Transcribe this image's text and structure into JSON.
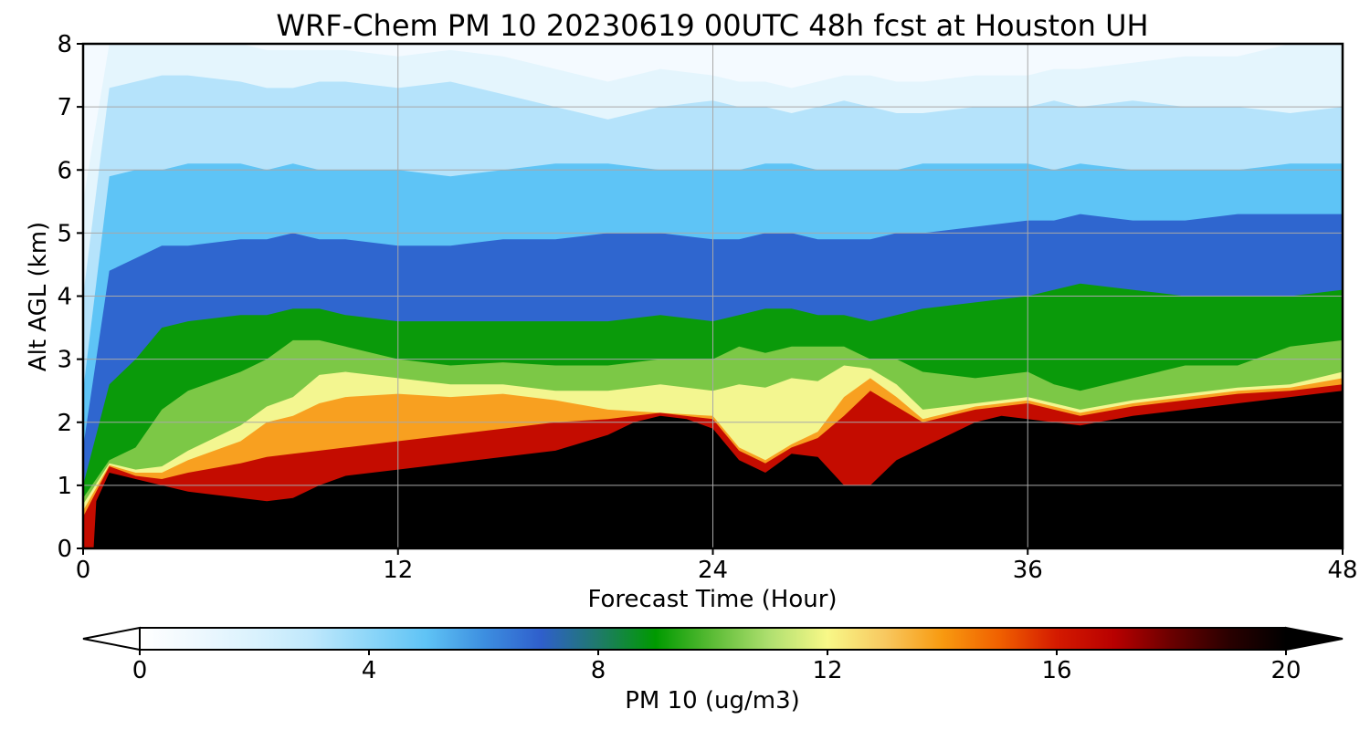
{
  "chart_data": {
    "type": "heatmap",
    "title": "WRF-Chem PM 10  20230619 00UTC 48h fcst at Houston UH",
    "xlabel": "Forecast Time (Hour)",
    "ylabel": "Alt AGL (km)",
    "xlim": [
      0,
      48
    ],
    "ylim": [
      0,
      8
    ],
    "xticks": [
      "0",
      "12",
      "24",
      "36",
      "48"
    ],
    "yticks": [
      "0",
      "1",
      "2",
      "3",
      "4",
      "5",
      "6",
      "7",
      "8"
    ],
    "grid": true,
    "masked_color": "#000000",
    "colorbar": {
      "label": "PM 10  (ug/m3)",
      "range": [
        0,
        20
      ],
      "ticks": [
        "0",
        "4",
        "8",
        "12",
        "16",
        "20"
      ],
      "extend": "both",
      "colors": [
        "#ffffff",
        "#eef8fe",
        "#daf2fd",
        "#bfe8fc",
        "#8dd6f8",
        "#5fc3f5",
        "#3d8fe0",
        "#2f5fcc",
        "#1f7a6a",
        "#009a00",
        "#5cbc36",
        "#b0e070",
        "#f8f888",
        "#f8c860",
        "#f89a10",
        "#f06000",
        "#d41a00",
        "#b80000",
        "#6a0000",
        "#2a0000",
        "#000000"
      ]
    },
    "terrain_top_km": {
      "x": [
        0,
        0.2,
        0.4,
        0.5,
        1,
        2,
        3,
        4,
        5,
        6,
        7,
        8,
        9,
        10,
        12,
        14,
        16,
        18,
        20,
        21,
        22,
        23,
        24,
        25,
        25.5,
        26,
        27,
        28,
        29,
        30,
        31,
        32,
        33,
        34,
        35,
        36,
        37,
        38,
        40,
        42,
        44,
        45,
        46,
        47,
        48
      ],
      "y": [
        0,
        0.0,
        0.0,
        0.75,
        1.2,
        1.1,
        1.0,
        0.9,
        0.85,
        0.8,
        0.75,
        0.8,
        1.0,
        1.15,
        1.25,
        1.35,
        1.45,
        1.55,
        1.8,
        2.0,
        2.1,
        2.05,
        1.9,
        1.4,
        1.3,
        1.2,
        1.5,
        1.45,
        1.0,
        1.0,
        1.4,
        1.6,
        1.8,
        2.0,
        2.1,
        2.05,
        2.0,
        1.95,
        2.1,
        2.2,
        2.3,
        2.35,
        2.4,
        2.45,
        2.5
      ]
    },
    "profile_layers_km": {
      "x": [
        0,
        1,
        2,
        3,
        4,
        6,
        7,
        8,
        9,
        10,
        12,
        14,
        16,
        18,
        20,
        22,
        24,
        25,
        26,
        27,
        28,
        29,
        30,
        31,
        32,
        34,
        36,
        37,
        38,
        40,
        42,
        44,
        46,
        48
      ],
      "red_top": [
        0.5,
        1.3,
        1.15,
        1.1,
        1.2,
        1.35,
        1.45,
        1.5,
        1.55,
        1.6,
        1.7,
        1.8,
        1.9,
        2.0,
        2.05,
        2.15,
        2.05,
        1.55,
        1.35,
        1.6,
        1.75,
        2.1,
        2.5,
        2.25,
        2.0,
        2.2,
        2.3,
        2.2,
        2.1,
        2.25,
        2.35,
        2.45,
        2.5,
        2.6
      ],
      "orange_top": [
        0.6,
        1.32,
        1.2,
        1.2,
        1.4,
        1.7,
        2.0,
        2.1,
        2.3,
        2.4,
        2.45,
        2.4,
        2.45,
        2.35,
        2.2,
        2.15,
        2.1,
        1.6,
        1.4,
        1.65,
        1.85,
        2.4,
        2.7,
        2.4,
        2.05,
        2.25,
        2.35,
        2.25,
        2.15,
        2.3,
        2.4,
        2.5,
        2.55,
        2.7
      ],
      "yellow_top": [
        0.7,
        1.35,
        1.25,
        1.3,
        1.55,
        1.95,
        2.25,
        2.4,
        2.75,
        2.8,
        2.7,
        2.6,
        2.6,
        2.5,
        2.5,
        2.6,
        2.5,
        2.6,
        2.55,
        2.7,
        2.65,
        2.9,
        2.85,
        2.6,
        2.2,
        2.3,
        2.4,
        2.3,
        2.2,
        2.35,
        2.45,
        2.55,
        2.6,
        2.8
      ],
      "lightgreen_top": [
        0.8,
        1.4,
        1.6,
        2.2,
        2.5,
        2.8,
        3.0,
        3.3,
        3.3,
        3.2,
        3.0,
        2.9,
        2.95,
        2.9,
        2.9,
        3.0,
        3.0,
        3.2,
        3.1,
        3.2,
        3.2,
        3.2,
        3.0,
        3.0,
        2.8,
        2.7,
        2.8,
        2.6,
        2.5,
        2.7,
        2.9,
        2.9,
        3.2,
        3.3
      ],
      "green_top": [
        1.0,
        2.6,
        3.0,
        3.5,
        3.6,
        3.7,
        3.7,
        3.8,
        3.8,
        3.7,
        3.6,
        3.6,
        3.6,
        3.6,
        3.6,
        3.7,
        3.6,
        3.7,
        3.8,
        3.8,
        3.7,
        3.7,
        3.6,
        3.7,
        3.8,
        3.9,
        4.0,
        4.1,
        4.2,
        4.1,
        4.0,
        4.0,
        4.0,
        4.1
      ],
      "darkblue_top": [
        1.6,
        4.4,
        4.6,
        4.8,
        4.8,
        4.9,
        4.9,
        5.0,
        4.9,
        4.9,
        4.8,
        4.8,
        4.9,
        4.9,
        5.0,
        5.0,
        4.9,
        4.9,
        5.0,
        5.0,
        4.9,
        4.9,
        4.9,
        5.0,
        5.0,
        5.1,
        5.2,
        5.2,
        5.3,
        5.2,
        5.2,
        5.3,
        5.3,
        5.3
      ],
      "skyblue_top": [
        2.5,
        5.9,
        6.0,
        6.0,
        6.1,
        6.1,
        6.0,
        6.1,
        6.0,
        6.0,
        6.0,
        5.9,
        6.0,
        6.1,
        6.1,
        6.0,
        6.0,
        6.0,
        6.1,
        6.1,
        6.0,
        6.0,
        6.0,
        6.0,
        6.1,
        6.1,
        6.1,
        6.0,
        6.1,
        6.0,
        6.0,
        6.0,
        6.1,
        6.1
      ],
      "lightblue_top": [
        4.0,
        7.3,
        7.4,
        7.5,
        7.5,
        7.4,
        7.3,
        7.3,
        7.4,
        7.4,
        7.3,
        7.4,
        7.2,
        7.0,
        6.8,
        7.0,
        7.1,
        7.0,
        7.0,
        6.9,
        7.0,
        7.1,
        7.0,
        6.9,
        6.9,
        7.0,
        7.0,
        7.1,
        7.0,
        7.1,
        7.0,
        7.0,
        6.9,
        7.0
      ],
      "paleblue_top": [
        5.5,
        8.0,
        8.0,
        8.0,
        8.0,
        8.0,
        7.9,
        7.9,
        7.9,
        7.9,
        7.8,
        7.9,
        7.8,
        7.6,
        7.4,
        7.6,
        7.5,
        7.4,
        7.4,
        7.3,
        7.4,
        7.5,
        7.5,
        7.4,
        7.4,
        7.5,
        7.5,
        7.6,
        7.6,
        7.7,
        7.8,
        7.8,
        8.0,
        8.0
      ]
    }
  }
}
